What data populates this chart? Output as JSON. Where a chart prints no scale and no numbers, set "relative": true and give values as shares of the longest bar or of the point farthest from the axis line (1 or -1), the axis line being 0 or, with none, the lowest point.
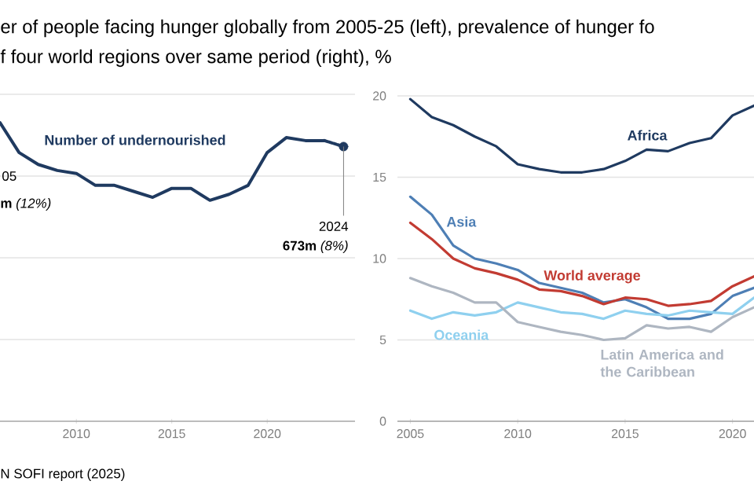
{
  "chart_data": [
    {
      "type": "line",
      "title": "er of people facing hunger globally from 2005-25 (left), prevalence of hunger fo",
      "subtitle": "f four world regions over same period (right), %",
      "relative": true,
      "x": [
        2006,
        2007,
        2008,
        2009,
        2010,
        2011,
        2012,
        2013,
        2014,
        2015,
        2016,
        2017,
        2018,
        2019,
        2020,
        2021,
        2022,
        2023,
        2024
      ],
      "xlim": [
        2006,
        2024.6
      ],
      "xticks": [
        2010,
        2015,
        2020
      ],
      "tick_labels": "x",
      "grid": "y",
      "series": [
        {
          "name": "Number of undernourished",
          "color": "#1f3a60",
          "values": [
            1.0,
            0.9,
            0.86,
            0.84,
            0.83,
            0.79,
            0.79,
            0.77,
            0.75,
            0.78,
            0.78,
            0.74,
            0.76,
            0.79,
            0.9,
            0.95,
            0.94,
            0.94,
            null
          ]
        },
        {
          "color": "#1f3a60",
          "line_style": "dotted",
          "values": [
            null,
            null,
            null,
            null,
            null,
            null,
            null,
            null,
            null,
            null,
            null,
            null,
            null,
            null,
            null,
            null,
            null,
            0.94,
            0.92
          ]
        },
        {
          "type": "scatter",
          "color": "#1f3a60",
          "x": [
            2024
          ],
          "values": [
            0.92
          ]
        }
      ],
      "annotations": [
        "05",
        "**m** *(12%)*",
        "2024",
        "**673m** *(8%)*",
        "N SOFI report (2025)"
      ]
    },
    {
      "type": "line",
      "x": [
        2005,
        2006,
        2007,
        2008,
        2009,
        2010,
        2011,
        2012,
        2013,
        2014,
        2015,
        2016,
        2017,
        2018,
        2019,
        2020,
        2021
      ],
      "xlim": [
        2004.4,
        2021
      ],
      "xticks": [
        2005,
        2010,
        2015,
        2020
      ],
      "ylim": [
        0,
        20
      ],
      "yticks": [
        0,
        5,
        10,
        15,
        20
      ],
      "grid": "y",
      "series": [
        {
          "name": "Africa",
          "color": "#1f3a60",
          "values": [
            19.8,
            18.7,
            18.2,
            17.5,
            16.9,
            15.8,
            15.5,
            15.3,
            15.3,
            15.5,
            16.0,
            16.7,
            16.6,
            17.1,
            17.4,
            18.8,
            19.4
          ]
        },
        {
          "name": "Asia",
          "color": "#4e7fb5",
          "values": [
            13.8,
            12.7,
            10.8,
            10.0,
            9.7,
            9.3,
            8.5,
            8.2,
            7.9,
            7.3,
            7.5,
            7.0,
            6.3,
            6.3,
            6.6,
            7.7,
            8.2
          ]
        },
        {
          "name": "World average",
          "color": "#c23b32",
          "values": [
            12.2,
            11.2,
            10.0,
            9.4,
            9.1,
            8.7,
            8.1,
            8.0,
            7.7,
            7.2,
            7.6,
            7.5,
            7.1,
            7.2,
            7.4,
            8.3,
            8.9
          ]
        },
        {
          "name": "Oceania",
          "color": "#8fd0ef",
          "values": [
            6.8,
            6.3,
            6.7,
            6.5,
            6.7,
            7.3,
            7.0,
            6.7,
            6.6,
            6.3,
            6.8,
            6.6,
            6.5,
            6.8,
            6.7,
            6.6,
            7.6
          ]
        },
        {
          "name": "Latin America and the Caribbean",
          "color": "#aeb6c1",
          "values": [
            8.8,
            8.3,
            7.9,
            7.3,
            7.3,
            6.1,
            5.8,
            5.5,
            5.3,
            5.0,
            5.1,
            5.9,
            5.7,
            5.8,
            5.5,
            6.4,
            7.0
          ]
        }
      ]
    }
  ]
}
